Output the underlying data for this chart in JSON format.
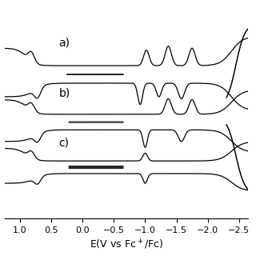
{
  "xlabel": "E(V vs Fc⁺/Fc)",
  "xlim": [
    1.25,
    -2.65
  ],
  "ylim": [
    -1.15,
    1.05
  ],
  "xticks": [
    1.0,
    0.5,
    0.0,
    -0.5,
    -1.0,
    -1.5,
    -2.0,
    -2.5
  ],
  "line_color": "#000000",
  "label_a": "a)",
  "label_b": "b)",
  "label_c": "c)",
  "fontsize_labels": 10,
  "fontsize_axis": 8,
  "lw": 0.9
}
